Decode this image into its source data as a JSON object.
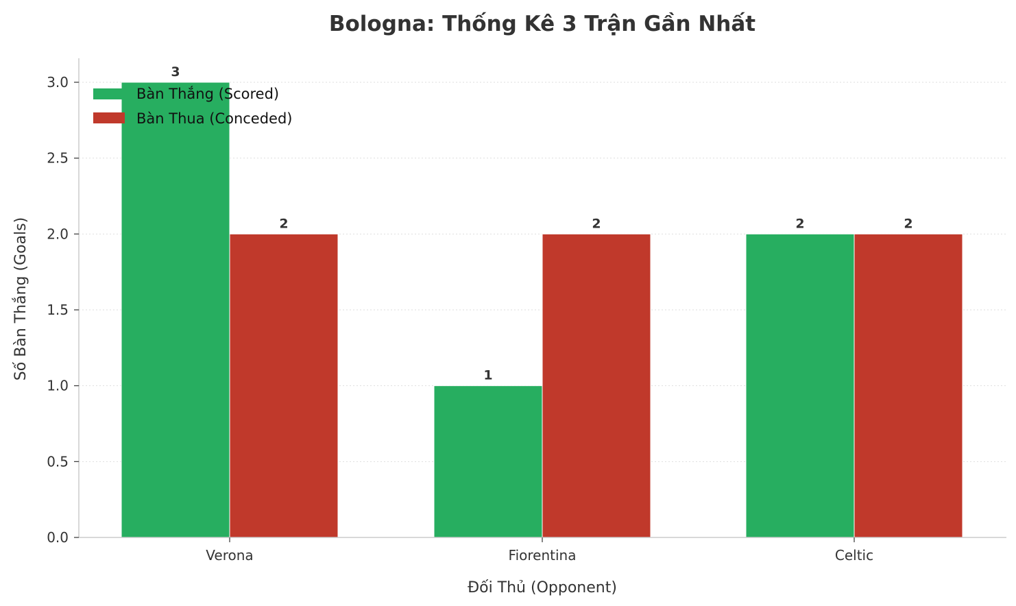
{
  "chart_data": {
    "type": "bar",
    "title": "Bologna: Thống Kê 3 Trận Gần Nhất",
    "xlabel": "Đối Thủ (Opponent)",
    "ylabel": "Số Bàn Thắng (Goals)",
    "categories": [
      "Verona",
      "Fiorentina",
      "Celtic"
    ],
    "series": [
      {
        "name": "Bàn Thắng (Scored)",
        "values": [
          3,
          1,
          2
        ],
        "color": "#27ae60"
      },
      {
        "name": "Bàn Thua (Conceded)",
        "values": [
          2,
          2,
          2
        ],
        "color": "#c0392b"
      }
    ],
    "ylim": [
      0,
      3.15
    ],
    "yticks": [
      "0.0",
      "0.5",
      "1.0",
      "1.5",
      "2.0",
      "2.5",
      "3.0"
    ],
    "grid": "y-dotted",
    "legend": "top-left",
    "data_labels": true
  }
}
